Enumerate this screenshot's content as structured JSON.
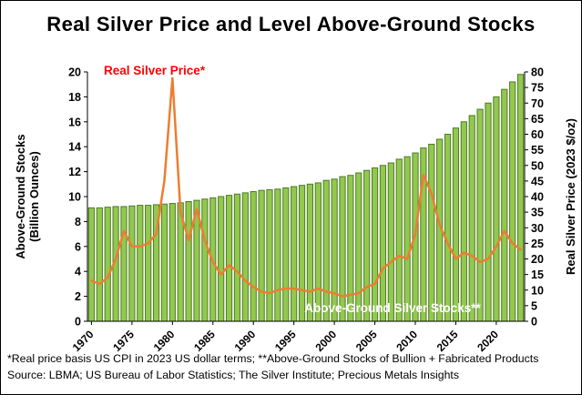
{
  "title": "Real Silver Price and Level Above-Ground Stocks",
  "annotations": {
    "price_label": "Real Silver Price*",
    "stocks_label": "Above-Ground Silver Stocks**"
  },
  "footnotes": {
    "line1": "*Real price basis US CPI in 2023 US dollar terms; **Above-Ground Stocks of Bullion + Fabricated Products",
    "line2": "Source: LBMA; US Bureau of Labor Statistics; The Silver Institute; Precious Metals Insights"
  },
  "colors": {
    "bar_fill": "#92C84E",
    "bar_stroke": "#4E7A27",
    "line_color": "#ED7D31",
    "price_label_color": "#FF0000",
    "stocks_label_color": "#FFFFFF",
    "axis_text": "#000000"
  },
  "chart_data": {
    "type": "combo",
    "x": [
      1970,
      1971,
      1972,
      1973,
      1974,
      1975,
      1976,
      1977,
      1978,
      1979,
      1980,
      1981,
      1982,
      1983,
      1984,
      1985,
      1986,
      1987,
      1988,
      1989,
      1990,
      1991,
      1992,
      1993,
      1994,
      1995,
      1996,
      1997,
      1998,
      1999,
      2000,
      2001,
      2002,
      2003,
      2004,
      2005,
      2006,
      2007,
      2008,
      2009,
      2010,
      2011,
      2012,
      2013,
      2014,
      2015,
      2016,
      2017,
      2018,
      2019,
      2020,
      2021,
      2022,
      2023
    ],
    "x_tick_labels": [
      "1970",
      "1975",
      "1980",
      "1985",
      "1990",
      "1995",
      "2000",
      "2005",
      "2010",
      "2015",
      "2020"
    ],
    "series": [
      {
        "name": "Above-Ground Silver Stocks",
        "type": "bar",
        "axis": "left",
        "values": [
          9.1,
          9.1,
          9.15,
          9.2,
          9.2,
          9.25,
          9.3,
          9.3,
          9.35,
          9.4,
          9.45,
          9.5,
          9.6,
          9.7,
          9.8,
          9.9,
          10.0,
          10.1,
          10.2,
          10.3,
          10.4,
          10.5,
          10.55,
          10.6,
          10.7,
          10.8,
          10.9,
          11.0,
          11.1,
          11.3,
          11.4,
          11.6,
          11.7,
          11.9,
          12.1,
          12.3,
          12.5,
          12.7,
          13.0,
          13.2,
          13.5,
          13.9,
          14.2,
          14.6,
          15.0,
          15.5,
          16.0,
          16.5,
          17.0,
          17.5,
          18.0,
          18.6,
          19.2,
          19.8
        ]
      },
      {
        "name": "Real Silver Price",
        "type": "line",
        "axis": "right",
        "values": [
          13,
          12,
          14,
          20,
          29,
          24,
          24,
          25,
          28,
          45,
          78,
          35,
          26,
          36,
          26,
          19,
          15,
          18,
          16,
          13,
          11,
          9.5,
          9,
          10,
          10.5,
          10.5,
          10,
          9.5,
          10.5,
          9.5,
          9,
          8,
          8.5,
          9,
          11,
          12,
          17,
          19,
          21,
          20,
          28,
          47,
          41,
          31,
          25,
          20,
          22,
          21,
          19,
          20,
          24,
          29,
          25,
          23
        ]
      }
    ],
    "left_axis": {
      "label": "Above-Ground Stocks (Billion Ounces)",
      "label_line1": "Above-Ground Stocks",
      "label_line2": "(Billion Ounces)",
      "min": 0,
      "max": 20,
      "step": 2
    },
    "right_axis": {
      "label": "Real Silver Price (2023 $/oz)",
      "min": 0,
      "max": 80,
      "step": 5
    }
  }
}
